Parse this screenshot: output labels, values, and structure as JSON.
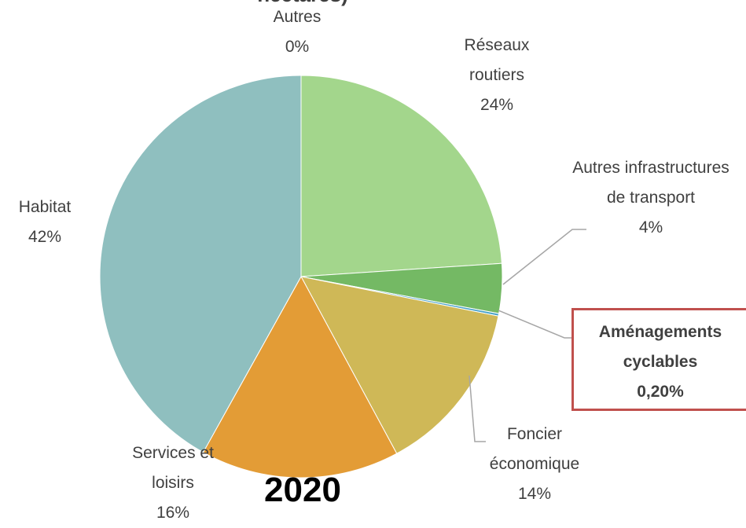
{
  "chart_data": {
    "type": "pie",
    "title": "hectares)",
    "annotation": "2020",
    "categories": [
      "Réseaux routiers",
      "Autres infrastructures de transport",
      "Aménagements cyclables",
      "Foncier économique",
      "Services et loisirs",
      "Habitat",
      "Autres"
    ],
    "values": [
      24,
      4,
      0.2,
      14,
      16,
      42,
      0
    ],
    "value_labels": [
      "24%",
      "4%",
      "0,20%",
      "14%",
      "16%",
      "42%",
      "0%"
    ],
    "colors": [
      "#a3d68c",
      "#74b964",
      "#4aa3c9",
      "#cfb857",
      "#e39c36",
      "#8fbfbf",
      "#5aa832"
    ],
    "highlight": "Aménagements cyclables"
  }
}
